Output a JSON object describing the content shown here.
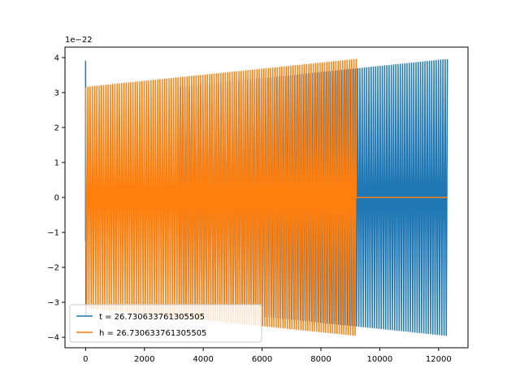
{
  "chart_data": {
    "type": "line",
    "title": "",
    "xlabel": "",
    "ylabel": "",
    "y_offset_label": "1e−22",
    "xlim": [
      -700,
      13000
    ],
    "ylim": [
      -4.3,
      4.3
    ],
    "x_ticks": [
      0,
      2000,
      4000,
      6000,
      8000,
      10000,
      12000
    ],
    "x_tick_labels": [
      "0",
      "2000",
      "4000",
      "6000",
      "8000",
      "10000",
      "12000"
    ],
    "y_ticks": [
      -4,
      -3,
      -2,
      -1,
      0,
      1,
      2,
      3,
      4
    ],
    "y_tick_labels": [
      "−4",
      "−3",
      "−2",
      "−1",
      "0",
      "1",
      "2",
      "3",
      "4"
    ],
    "grid": false,
    "legend_position": "lower-left",
    "series": [
      {
        "name": "t = 26.730633761305505",
        "color": "#1f77b4",
        "segments": [
          {
            "kind": "spike",
            "x": [
              -10,
              0,
              0,
              10
            ],
            "y": [
              -1.25,
              -1.25,
              3.9,
              -3.4
            ]
          },
          {
            "kind": "flat",
            "x": [
              10,
              3150
            ],
            "value": 0
          },
          {
            "kind": "oscillation",
            "x_start": 3150,
            "x_end": 12300,
            "amp_start": 3.15,
            "amp_end": 3.95,
            "cycles": 120
          }
        ]
      },
      {
        "name": "h = 26.730633761305505",
        "color": "#ff7f0e",
        "segments": [
          {
            "kind": "oscillation",
            "x_start": 0,
            "x_end": 9200,
            "amp_start": 3.15,
            "amp_end": 3.95,
            "cycles": 120
          },
          {
            "kind": "flat",
            "x": [
              9200,
              12300
            ],
            "value": 0
          }
        ]
      }
    ]
  }
}
